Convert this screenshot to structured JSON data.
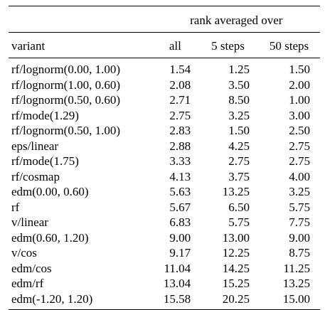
{
  "table": {
    "group_header": "rank averaged over",
    "columns": [
      "variant",
      "all",
      "5 steps",
      "50 steps"
    ],
    "rows": [
      {
        "variant": "rf/lognorm(0.00, 1.00)",
        "all": "1.54",
        "steps5": "1.25",
        "steps50": "1.50"
      },
      {
        "variant": "rf/lognorm(1.00, 0.60)",
        "all": "2.08",
        "steps5": "3.50",
        "steps50": "2.00"
      },
      {
        "variant": "rf/lognorm(0.50, 0.60)",
        "all": "2.71",
        "steps5": "8.50",
        "steps50": "1.00"
      },
      {
        "variant": "rf/mode(1.29)",
        "all": "2.75",
        "steps5": "3.25",
        "steps50": "3.00"
      },
      {
        "variant": "rf/lognorm(0.50, 1.00)",
        "all": "2.83",
        "steps5": "1.50",
        "steps50": "2.50"
      },
      {
        "variant": "eps/linear",
        "all": "2.88",
        "steps5": "4.25",
        "steps50": "2.75"
      },
      {
        "variant": "rf/mode(1.75)",
        "all": "3.33",
        "steps5": "2.75",
        "steps50": "2.75"
      },
      {
        "variant": "rf/cosmap",
        "all": "4.13",
        "steps5": "3.75",
        "steps50": "4.00"
      },
      {
        "variant": "edm(0.00, 0.60)",
        "all": "5.63",
        "steps5": "13.25",
        "steps50": "3.25"
      },
      {
        "variant": "rf",
        "all": "5.67",
        "steps5": "6.50",
        "steps50": "5.75"
      },
      {
        "variant": "v/linear",
        "all": "6.83",
        "steps5": "5.75",
        "steps50": "7.75"
      },
      {
        "variant": "edm(0.60, 1.20)",
        "all": "9.00",
        "steps5": "13.00",
        "steps50": "9.00"
      },
      {
        "variant": "v/cos",
        "all": "9.17",
        "steps5": "12.25",
        "steps50": "8.75"
      },
      {
        "variant": "edm/cos",
        "all": "11.04",
        "steps5": "14.25",
        "steps50": "11.25"
      },
      {
        "variant": "edm/rf",
        "all": "13.04",
        "steps5": "15.25",
        "steps50": "13.25"
      },
      {
        "variant": "edm(-1.20, 1.20)",
        "all": "15.58",
        "steps5": "20.25",
        "steps50": "15.00"
      }
    ]
  }
}
